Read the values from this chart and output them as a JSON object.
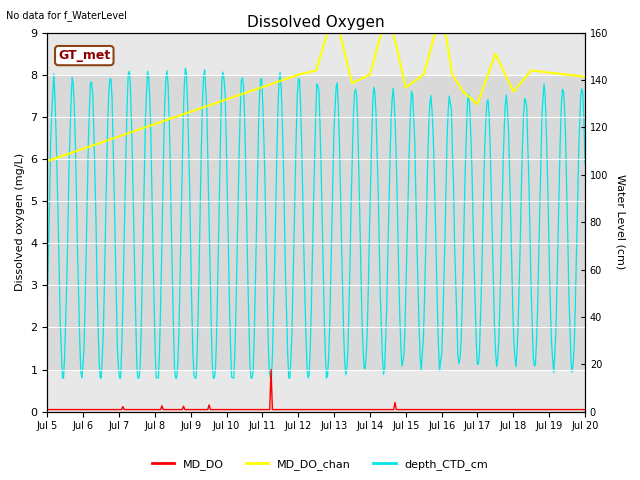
{
  "title": "Dissolved Oxygen",
  "subtitle": "No data for f_WaterLevel",
  "ylabel_left": "Dissolved oxygen (mg/L)",
  "ylabel_right": "Water Level (cm)",
  "ylim_left": [
    0.0,
    9.0
  ],
  "ylim_right": [
    0,
    160
  ],
  "yticks_left": [
    0.0,
    1.0,
    2.0,
    3.0,
    4.0,
    5.0,
    6.0,
    7.0,
    8.0,
    9.0
  ],
  "yticks_right": [
    0,
    20,
    40,
    60,
    80,
    100,
    120,
    140,
    160
  ],
  "shaded_band": [
    1.0,
    8.0
  ],
  "annotation_box": "GT_met",
  "color_MD_DO": "#ff0000",
  "color_MD_DO_chan": "#ffff00",
  "color_depth_CTD_cm": "#00e5e5",
  "background_color": "#ffffff",
  "plot_bg_color": "#e8e8e8",
  "grid_color": "#ffffff",
  "legend_labels": [
    "MD_DO",
    "MD_DO_chan",
    "depth_CTD_cm"
  ],
  "xtick_labels": [
    "Jul 5",
    "Jul 6",
    "Jul 7",
    "Jul 8",
    "Jul 9",
    "Jul 10",
    "Jul 11",
    "Jul 12",
    "Jul 13",
    "Jul 14",
    "Jul 15",
    "Jul 16",
    "Jul 17",
    "Jul 18",
    "Jul 19",
    "Jul 20"
  ]
}
